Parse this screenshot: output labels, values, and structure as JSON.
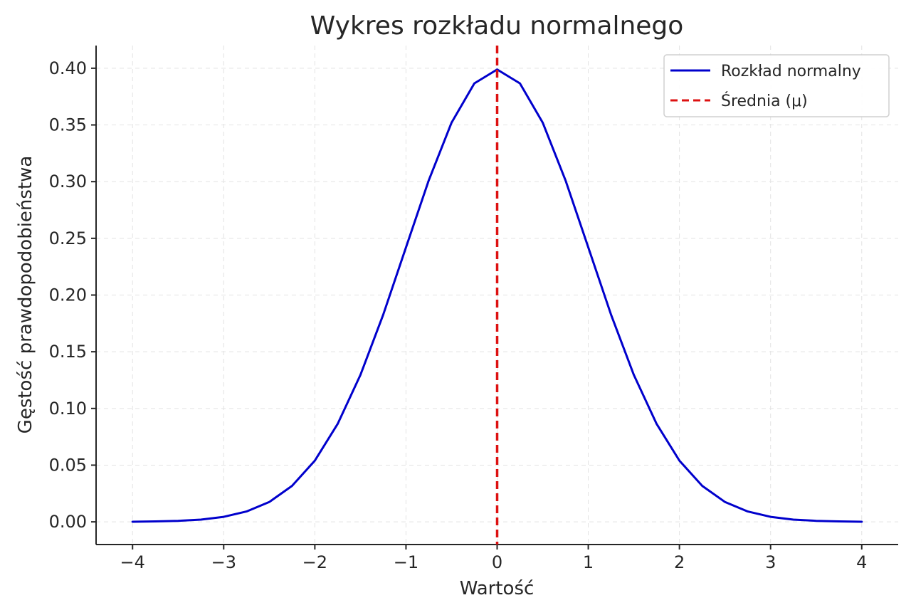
{
  "chart_data": {
    "type": "line",
    "title": "Wykres rozkładu normalnego",
    "xlabel": "Wartość",
    "ylabel": "Gęstość prawdopodobieństwa",
    "xlim": [
      -4.4,
      4.4
    ],
    "ylim": [
      -0.02,
      0.42
    ],
    "grid": true,
    "legend_position": "top-right",
    "x_ticks": [
      {
        "value": -4,
        "label": "−4"
      },
      {
        "value": -3,
        "label": "−3"
      },
      {
        "value": -2,
        "label": "−2"
      },
      {
        "value": -1,
        "label": "−1"
      },
      {
        "value": 0,
        "label": "0"
      },
      {
        "value": 1,
        "label": "1"
      },
      {
        "value": 2,
        "label": "2"
      },
      {
        "value": 3,
        "label": "3"
      },
      {
        "value": 4,
        "label": "4"
      }
    ],
    "y_ticks": [
      {
        "value": 0.0,
        "label": "0.00"
      },
      {
        "value": 0.05,
        "label": "0.05"
      },
      {
        "value": 0.1,
        "label": "0.10"
      },
      {
        "value": 0.15,
        "label": "0.15"
      },
      {
        "value": 0.2,
        "label": "0.20"
      },
      {
        "value": 0.25,
        "label": "0.25"
      },
      {
        "value": 0.3,
        "label": "0.30"
      },
      {
        "value": 0.35,
        "label": "0.35"
      },
      {
        "value": 0.4,
        "label": "0.40"
      }
    ],
    "series": [
      {
        "name": "Rozkład normalny",
        "color": "#0000cc",
        "style": "solid",
        "x": [
          -4.0,
          -3.75,
          -3.5,
          -3.25,
          -3.0,
          -2.75,
          -2.5,
          -2.25,
          -2.0,
          -1.75,
          -1.5,
          -1.25,
          -1.0,
          -0.75,
          -0.5,
          -0.25,
          0.0,
          0.25,
          0.5,
          0.75,
          1.0,
          1.25,
          1.5,
          1.75,
          2.0,
          2.25,
          2.5,
          2.75,
          3.0,
          3.25,
          3.5,
          3.75,
          4.0
        ],
        "y": [
          0.0001,
          0.0004,
          0.0009,
          0.002,
          0.0044,
          0.0091,
          0.0175,
          0.0317,
          0.054,
          0.0863,
          0.1295,
          0.1826,
          0.242,
          0.3011,
          0.3521,
          0.3867,
          0.3989,
          0.3867,
          0.3521,
          0.3011,
          0.242,
          0.1826,
          0.1295,
          0.0863,
          0.054,
          0.0317,
          0.0175,
          0.0091,
          0.0044,
          0.002,
          0.0009,
          0.0004,
          0.0001
        ]
      },
      {
        "name": "Średnia (μ)",
        "color": "#dd1111",
        "style": "dashed",
        "vline_x": 0
      }
    ]
  }
}
